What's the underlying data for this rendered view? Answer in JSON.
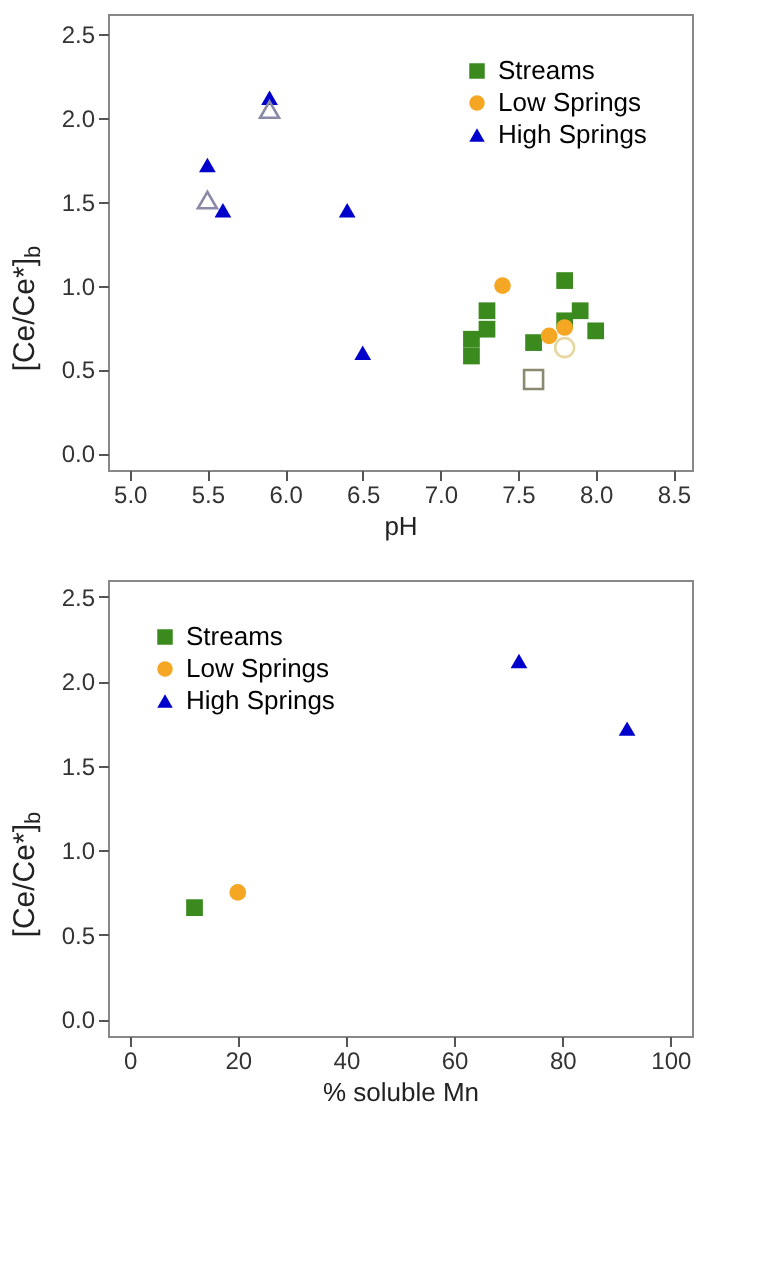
{
  "chart_data": [
    {
      "type": "scatter",
      "xlabel": "pH",
      "ylabel": "[Ce/Ce*]$_{b}$",
      "xlim": [
        4.86,
        8.62
      ],
      "ylim": [
        -0.1,
        2.62
      ],
      "xticks": [
        {
          "value": 5,
          "label": "5.0"
        },
        5.5,
        {
          "value": 6,
          "label": "6.0"
        },
        6.5,
        {
          "value": 7,
          "label": "7.0"
        },
        7.5,
        {
          "value": 8,
          "label": "8.0"
        },
        8.5
      ],
      "yticks": [
        {
          "value": 0,
          "label": "0.0"
        },
        0.5,
        {
          "value": 1,
          "label": "1.0"
        },
        1.5,
        {
          "value": 2,
          "label": "2.0"
        },
        2.5
      ],
      "grid": false,
      "legend": "top right",
      "series": [
        {
          "name": "Streams",
          "color": "#3a8a1e",
          "marker": "square",
          "x": [
            7.2,
            7.2,
            7.3,
            7.3,
            7.6,
            7.8,
            7.8,
            7.9,
            8.0
          ],
          "values": [
            0.58,
            0.68,
            0.74,
            0.85,
            0.66,
            1.03,
            0.79,
            0.85,
            0.73
          ]
        },
        {
          "name": "Low Springs",
          "color": "#f5a623",
          "marker": "circle",
          "x": [
            7.4,
            7.7,
            7.8
          ],
          "values": [
            1.0,
            0.7,
            0.75
          ]
        },
        {
          "name": "High Springs",
          "color": "#0000cc",
          "marker": "triangle",
          "x": [
            5.5,
            5.6,
            5.9,
            6.4,
            6.5
          ],
          "values": [
            1.72,
            1.45,
            2.12,
            1.45,
            0.6
          ]
        },
        {
          "color": "#8a8aa8",
          "marker": "triangle",
          "x": [
            5.5,
            5.9
          ],
          "values": [
            1.51,
            2.05
          ]
        },
        {
          "color": "#8a8a70",
          "marker": "square",
          "x": [
            7.6
          ],
          "values": [
            0.44
          ]
        },
        {
          "color": "#e6d6a0",
          "marker": "circle",
          "x": [
            7.8
          ],
          "values": [
            0.63
          ]
        }
      ]
    },
    {
      "type": "scatter",
      "xlabel": "% soluble Mn",
      "ylabel": "[Ce/Ce*]$_{b}$",
      "xlim": [
        -4,
        104
      ],
      "ylim": [
        -0.1,
        2.6
      ],
      "xticks": [
        0,
        20,
        40,
        60,
        80,
        100
      ],
      "yticks": [
        {
          "value": 0,
          "label": "0.0"
        },
        0.5,
        {
          "value": 1,
          "label": "1.0"
        },
        1.5,
        {
          "value": 2,
          "label": "2.0"
        },
        2.5
      ],
      "grid": false,
      "legend": "top left",
      "series": [
        {
          "name": "Streams",
          "color": "#3a8a1e",
          "marker": "square",
          "x": [
            12
          ],
          "values": [
            0.66
          ]
        },
        {
          "name": "Low Springs",
          "color": "#f5a623",
          "marker": "circle",
          "x": [
            20
          ],
          "values": [
            0.75
          ]
        },
        {
          "name": "High Springs",
          "color": "#0000cc",
          "marker": "triangle",
          "x": [
            72,
            92
          ],
          "values": [
            2.12,
            1.72
          ]
        }
      ]
    }
  ]
}
